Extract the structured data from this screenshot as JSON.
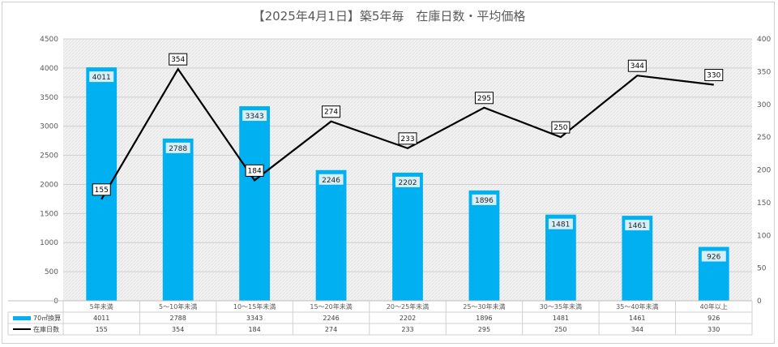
{
  "chart_data": {
    "type": "bar+line",
    "title": "【2025年4月1日】築5年毎　在庫日数・平均価格",
    "categories": [
      "5年未満",
      "5～10年未満",
      "10～15年未満",
      "15～20年未満",
      "20～25年未満",
      "25～30年未満",
      "30～35年未満",
      "35～40年未満",
      "40年以上"
    ],
    "series": [
      {
        "name": "70㎡換算",
        "type": "bar",
        "axis": "left",
        "color": "#00b0f0",
        "values": [
          4011,
          2788,
          3343,
          2246,
          2202,
          1896,
          1481,
          1461,
          926
        ]
      },
      {
        "name": "在庫日数",
        "type": "line",
        "axis": "right",
        "color": "#000000",
        "values": [
          155,
          354,
          184,
          274,
          233,
          295,
          250,
          344,
          330
        ]
      }
    ],
    "y_left": {
      "min": 0,
      "max": 4500,
      "step": 500
    },
    "y_right": {
      "min": 0,
      "max": 400,
      "step": 50
    },
    "grid": true,
    "legend": "data-table"
  }
}
